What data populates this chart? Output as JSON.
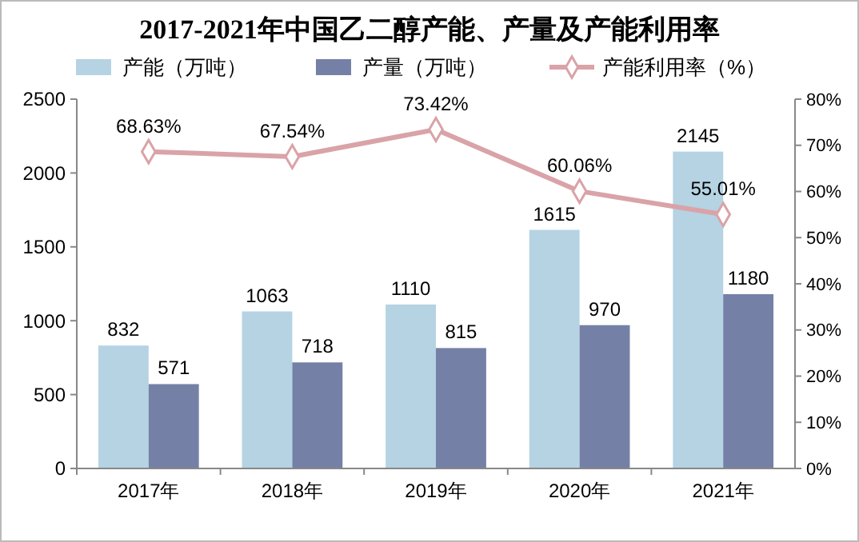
{
  "chart_data": {
    "type": "bar",
    "title": "2017-2021年中国乙二醇产能、产量及产能利用率",
    "categories": [
      "2017年",
      "2018年",
      "2019年",
      "2020年",
      "2021年"
    ],
    "series": [
      {
        "name": "产能（万吨）",
        "color": "#b5d3e3",
        "values": [
          832,
          1063,
          1110,
          1615,
          2145
        ]
      },
      {
        "name": "产量（万吨）",
        "color": "#7580a6",
        "values": [
          571,
          718,
          815,
          970,
          1180
        ]
      },
      {
        "name": "产能利用率（%）",
        "type": "line",
        "axis": "y2",
        "color": "#d9a3a8",
        "marker": "diamond",
        "values": [
          68.63,
          67.54,
          73.42,
          60.06,
          55.01
        ],
        "value_labels": [
          "68.63%",
          "67.54%",
          "73.42%",
          "60.06%",
          "55.01%"
        ]
      }
    ],
    "ylim": [
      0,
      2500
    ],
    "yticks": [
      0,
      500,
      1000,
      1500,
      2000,
      2500
    ],
    "y2lim": [
      0,
      80
    ],
    "y2ticks": [
      {
        "value": 0,
        "label": "0%"
      },
      {
        "value": 10,
        "label": "10%"
      },
      {
        "value": 20,
        "label": "20%"
      },
      {
        "value": 30,
        "label": "30%"
      },
      {
        "value": 40,
        "label": "40%"
      },
      {
        "value": 50,
        "label": "50%"
      },
      {
        "value": 60,
        "label": "60%"
      },
      {
        "value": 70,
        "label": "70%"
      },
      {
        "value": 80,
        "label": "80%"
      }
    ],
    "data_labels": true,
    "legend": "top",
    "grid": false
  }
}
